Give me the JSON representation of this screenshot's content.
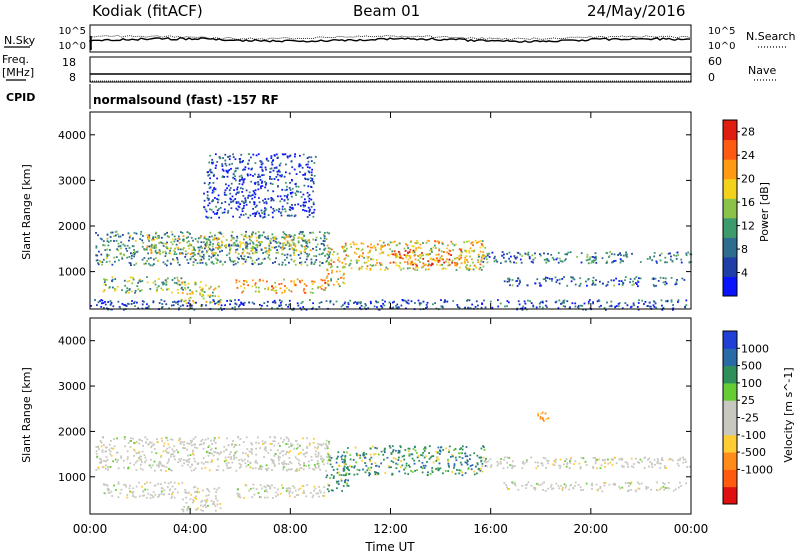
{
  "header": {
    "station": "Kodiak (fitACF)",
    "beam": "Beam 01",
    "date": "24/May/2016"
  },
  "side_labels": {
    "nsky": "N.Sky",
    "freq": "Freq.",
    "freq_unit": "[MHz]",
    "cpid": "CPID",
    "nsearch": "N.Search",
    "nave": "Nave"
  },
  "mini_axes": {
    "nsky_ticks": [
      "10^5",
      "10^0"
    ],
    "nsearch_ticks": [
      "10^5",
      "10^0"
    ],
    "freq_ticks": [
      "18",
      "8"
    ],
    "nave_ticks": [
      "60",
      "0"
    ]
  },
  "cpid_text": "normalsound (fast) -157 RF",
  "chart_data": [
    {
      "type": "heatmap",
      "title": "",
      "ylabel": "Slant Range [km]",
      "xlabel": "",
      "x_ticks": [
        "00:00",
        "04:00",
        "08:00",
        "12:00",
        "16:00",
        "20:00",
        "00:00"
      ],
      "y_ticks": [
        "1000",
        "2000",
        "3000",
        "4000"
      ],
      "xlim_hours": [
        0,
        24
      ],
      "ylim_km": [
        180,
        4500
      ],
      "colorbar": {
        "label": "Power [dB]",
        "ticks": [
          "4",
          "8",
          "12",
          "16",
          "20",
          "24",
          "28"
        ],
        "range": [
          0,
          30
        ],
        "colors": [
          "#0a14ff",
          "#1f3fa6",
          "#2e6d8e",
          "#3d9a6d",
          "#8bc34a",
          "#f2d21b",
          "#ff9a12",
          "#ff5a12",
          "#e01e10"
        ]
      },
      "bands": [
        {
          "t0": 0.2,
          "t1": 9.6,
          "r0": 1150,
          "r1": 1900,
          "level": 0.35
        },
        {
          "t0": 2.2,
          "t1": 8.8,
          "r0": 1400,
          "r1": 1800,
          "level": 0.55
        },
        {
          "t0": 0.5,
          "t1": 3.8,
          "r0": 550,
          "r1": 900,
          "level": 0.45
        },
        {
          "t0": 3.6,
          "t1": 5.2,
          "r0": 250,
          "r1": 800,
          "level": 0.55
        },
        {
          "t0": 5.8,
          "t1": 9.4,
          "r0": 550,
          "r1": 850,
          "level": 0.7
        },
        {
          "t0": 9.4,
          "t1": 10.2,
          "r0": 700,
          "r1": 1600,
          "level": 0.6
        },
        {
          "t0": 10.1,
          "t1": 15.8,
          "r0": 1050,
          "r1": 1700,
          "level": 0.6
        },
        {
          "t0": 12.0,
          "t1": 14.8,
          "r0": 1150,
          "r1": 1500,
          "level": 0.8
        },
        {
          "t0": 15.6,
          "t1": 24.0,
          "r0": 1200,
          "r1": 1450,
          "level": 0.3
        },
        {
          "t0": 16.5,
          "t1": 23.8,
          "r0": 700,
          "r1": 900,
          "level": 0.25
        },
        {
          "t0": 4.5,
          "t1": 9.0,
          "r0": 2200,
          "r1": 3600,
          "level": 0.15
        },
        {
          "t0": 0.0,
          "t1": 24.0,
          "r0": 180,
          "r1": 400,
          "level": 0.2
        }
      ]
    },
    {
      "type": "heatmap",
      "title": "",
      "ylabel": "Slant Range [km]",
      "xlabel": "Time UT",
      "x_ticks": [
        "00:00",
        "04:00",
        "08:00",
        "12:00",
        "16:00",
        "20:00",
        "00:00"
      ],
      "y_ticks": [
        "1000",
        "2000",
        "3000",
        "4000"
      ],
      "xlim_hours": [
        0,
        24
      ],
      "ylim_km": [
        180,
        4500
      ],
      "colorbar": {
        "label": "Velocity [m s^-1]",
        "ticks": [
          "1000",
          "500",
          "100",
          "25",
          "-25",
          "-100",
          "-500",
          "-1000"
        ],
        "colors": [
          "#1f3fd6",
          "#2a6aa6",
          "#2f8f5a",
          "#66cc33",
          "#c8c8c0",
          "#c8c8c0",
          "#ffcc33",
          "#ff8c1a",
          "#ff5a10",
          "#e01010"
        ]
      },
      "bands": [
        {
          "t0": 0.2,
          "t1": 9.6,
          "r0": 1150,
          "r1": 1900,
          "level": 0.5
        },
        {
          "t0": 0.5,
          "t1": 3.8,
          "r0": 550,
          "r1": 900,
          "level": 0.5
        },
        {
          "t0": 3.6,
          "t1": 5.2,
          "r0": 250,
          "r1": 800,
          "level": 0.55
        },
        {
          "t0": 5.8,
          "t1": 9.4,
          "r0": 550,
          "r1": 850,
          "level": 0.5
        },
        {
          "t0": 9.4,
          "t1": 10.3,
          "r0": 700,
          "r1": 1600,
          "level": 0.3
        },
        {
          "t0": 10.1,
          "t1": 15.8,
          "r0": 1050,
          "r1": 1700,
          "level": 0.2
        },
        {
          "t0": 15.6,
          "t1": 24.0,
          "r0": 1200,
          "r1": 1450,
          "level": 0.5
        },
        {
          "t0": 16.5,
          "t1": 23.8,
          "r0": 700,
          "r1": 900,
          "level": 0.5
        },
        {
          "t0": 17.8,
          "t1": 18.3,
          "r0": 2250,
          "r1": 2450,
          "level": 0.85
        }
      ]
    }
  ]
}
